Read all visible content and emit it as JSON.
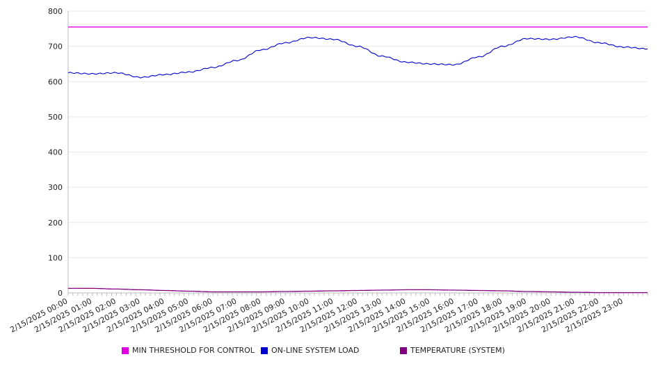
{
  "chart_data": {
    "type": "line",
    "title": "",
    "xlabel": "",
    "ylabel": "",
    "ylim": [
      0,
      800
    ],
    "yticks": [
      0,
      100,
      200,
      300,
      400,
      500,
      600,
      700,
      800
    ],
    "grid": "horizontal",
    "legend_position": "bottom",
    "x_tick_labels": [
      "2/15/2025 00:00",
      "2/15/2025 01:00",
      "2/15/2025 02:00",
      "2/15/2025 03:00",
      "2/15/2025 04:00",
      "2/15/2025 05:00",
      "2/15/2025 06:00",
      "2/15/2025 07:00",
      "2/15/2025 08:00",
      "2/15/2025 09:00",
      "2/15/2025 10:00",
      "2/15/2025 11:00",
      "2/15/2025 12:00",
      "2/15/2025 13:00",
      "2/15/2025 14:00",
      "2/15/2025 15:00",
      "2/15/2025 16:00",
      "2/15/2025 17:00",
      "2/15/2025 18:00",
      "2/15/2025 19:00",
      "2/15/2025 20:00",
      "2/15/2025 21:00",
      "2/15/2025 22:00",
      "2/15/2025 23:00"
    ],
    "x": [
      "2/15/2025 00:00",
      "2/15/2025 01:00",
      "2/15/2025 02:00",
      "2/15/2025 03:00",
      "2/15/2025 04:00",
      "2/15/2025 05:00",
      "2/15/2025 06:00",
      "2/15/2025 07:00",
      "2/15/2025 08:00",
      "2/15/2025 09:00",
      "2/15/2025 10:00",
      "2/15/2025 11:00",
      "2/15/2025 12:00",
      "2/15/2025 13:00",
      "2/15/2025 14:00",
      "2/15/2025 15:00",
      "2/15/2025 16:00",
      "2/15/2025 17:00",
      "2/15/2025 18:00",
      "2/15/2025 19:00",
      "2/15/2025 20:00",
      "2/15/2025 21:00",
      "2/15/2025 22:00",
      "2/15/2025 23:00",
      "2/15/2025 24:00"
    ],
    "series": [
      {
        "name": "MIN THRESHOLD FOR CONTROL",
        "color": "#e000e0",
        "values": [
          755,
          755,
          755,
          755,
          755,
          755,
          755,
          755,
          755,
          755,
          755,
          755,
          755,
          755,
          755,
          755,
          755,
          755,
          755,
          755,
          755,
          755,
          755,
          755,
          755
        ]
      },
      {
        "name": "ON-LINE SYSTEM LOAD",
        "color": "#0000cc",
        "values": [
          625,
          622,
          625,
          612,
          620,
          627,
          640,
          660,
          690,
          710,
          725,
          720,
          700,
          672,
          655,
          650,
          648,
          670,
          700,
          722,
          720,
          727,
          710,
          698,
          693
        ]
      },
      {
        "name": "TEMPERATURE (SYSTEM)",
        "color": "#800080",
        "values": [
          13,
          13,
          11,
          9,
          7,
          5,
          3,
          3,
          3,
          4,
          5,
          6,
          7,
          8,
          9,
          9,
          8,
          7,
          6,
          4,
          3,
          2,
          1,
          1,
          1
        ]
      }
    ]
  }
}
